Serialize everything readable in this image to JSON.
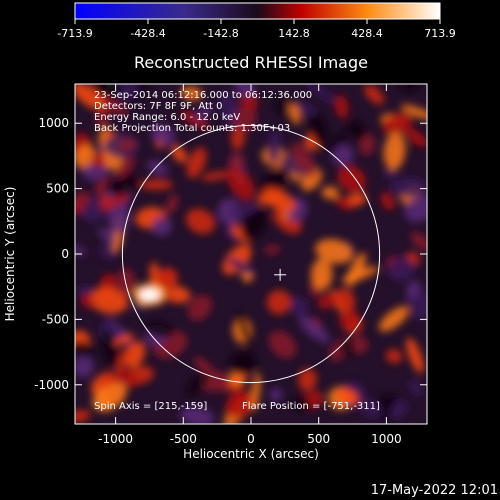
{
  "colorbar": {
    "ticks": [
      "-713.9",
      "-428.4",
      "-142.8",
      "142.8",
      "428.4",
      "713.9"
    ],
    "colors": [
      "#0000ff",
      "#3a2a8a",
      "#2a1030",
      "#ff2000",
      "#ff9b20",
      "#ffffff"
    ]
  },
  "chart_data": {
    "type": "heatmap",
    "title": "Reconstructed RHESSI Image",
    "xlabel": "Heliocentric X (arcsec)",
    "ylabel": "Heliocentric Y (arcsec)",
    "xlim": [
      -1300,
      1300
    ],
    "ylim": [
      -1300,
      1300
    ],
    "x_ticks": [
      "-1000",
      "-500",
      "0",
      "500",
      "1000"
    ],
    "y_ticks": [
      "-1000",
      "-500",
      "0",
      "500",
      "1000"
    ],
    "x_tick_values": [
      -1000,
      -500,
      0,
      500,
      1000
    ],
    "y_tick_values": [
      -1000,
      -500,
      0,
      500,
      1000
    ],
    "value_range": [
      -713.9,
      713.9
    ],
    "solar_limb_radius_arcsec": 950,
    "marker": {
      "x": 215,
      "y": -159
    },
    "bright_spot": {
      "x": -751,
      "y": -311,
      "value": 713.9
    },
    "annotations": [
      "23-Sep-2014 06:12:16.000 to 06:12:36.000",
      "Detectors: 7F 8F 9F, Att 0",
      "Energy Range: 6.0 - 12.0 keV",
      "Back Projection    Total counts: 1.30E+03"
    ],
    "footer_left": "Spin Axis = [215,-159]",
    "footer_right": "Flare Position = [-751,-311]"
  },
  "timestamp": "17-May-2022 12:01"
}
